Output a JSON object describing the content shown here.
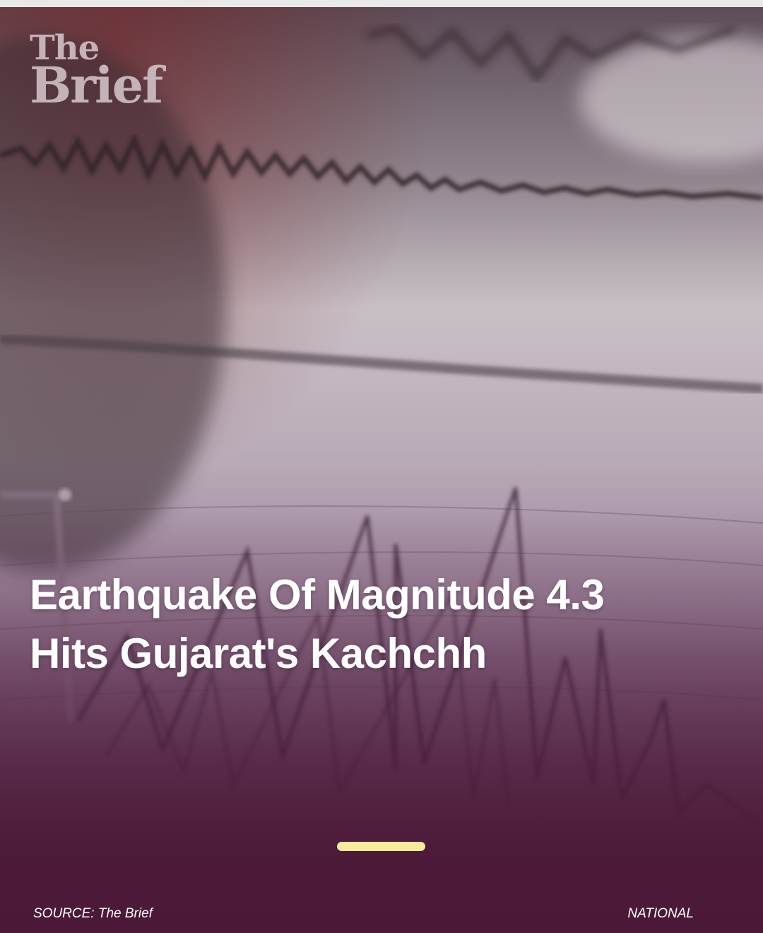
{
  "brand": {
    "logo_line1": "The",
    "logo_line2": "Brief"
  },
  "story": {
    "headline": "Earthquake Of Magnitude 4.3 Hits Gujarat's Kachchh",
    "source": "SOURCE: The Brief",
    "category": "NATIONAL",
    "progress_fraction": 1.0
  },
  "colors": {
    "overlay": "#4b1937",
    "progress_bar": "#f6eb9a",
    "headline_text": "#ffffff",
    "logo_text": "#cdbec3"
  },
  "icons": {
    "background": "seismograph-photo"
  }
}
